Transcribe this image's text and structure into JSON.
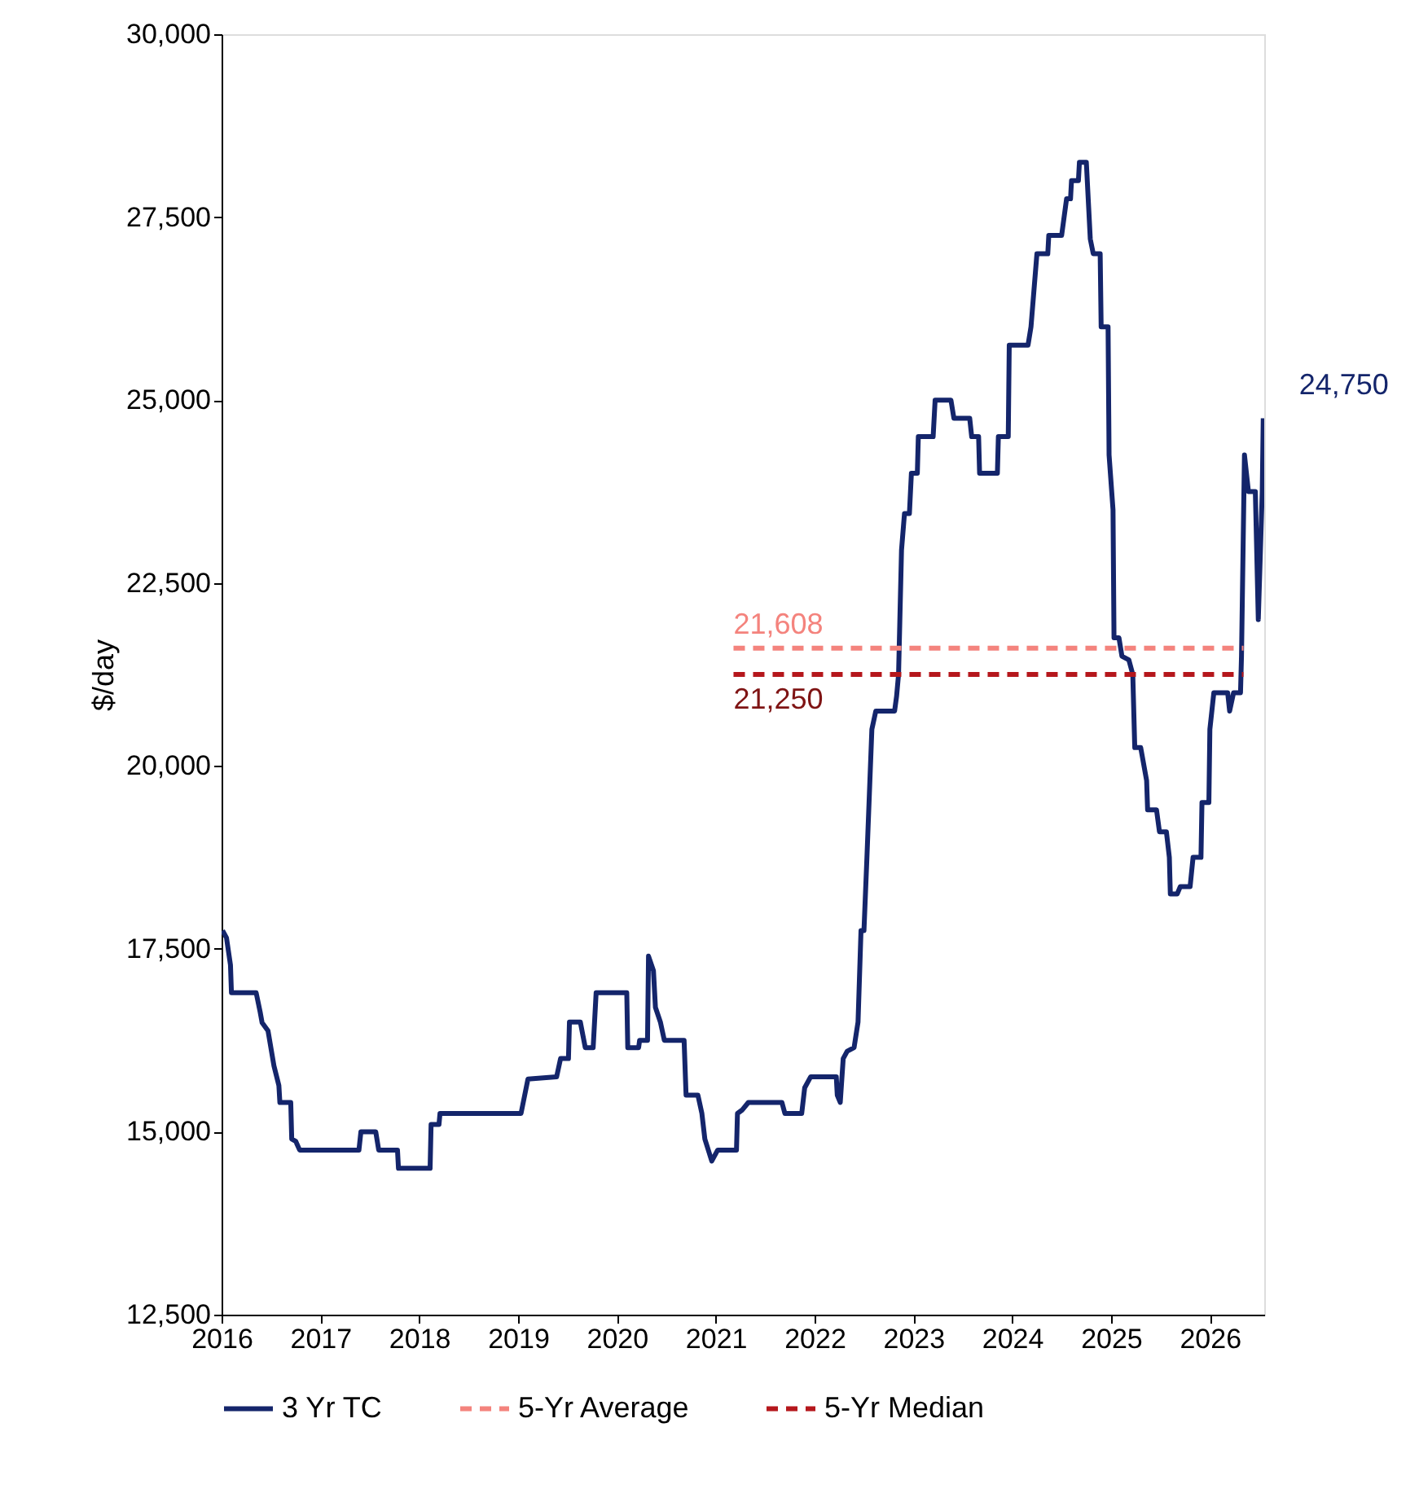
{
  "chart_data": {
    "type": "line",
    "ylabel": "$/day",
    "xlim": [
      2016,
      2026.55
    ],
    "xticks": [
      2016,
      2017,
      2018,
      2019,
      2020,
      2021,
      2022,
      2023,
      2024,
      2025,
      2026
    ],
    "ylim": [
      12500,
      30000
    ],
    "yticks": [
      {
        "value": 12500,
        "label": "12,500"
      },
      {
        "value": 15000,
        "label": "15,000"
      },
      {
        "value": 17500,
        "label": "17,500"
      },
      {
        "value": 20000,
        "label": "20,000"
      },
      {
        "value": 22500,
        "label": "22,500"
      },
      {
        "value": 25000,
        "label": "25,000"
      },
      {
        "value": 27500,
        "label": "27,500"
      },
      {
        "value": 30000,
        "label": "30,000"
      }
    ],
    "grid": false,
    "legend": "bottom",
    "marker": "none",
    "series": [
      {
        "name": "3 Yr TC",
        "color": "#14256b",
        "line_style": "solid",
        "x": [
          2016.01,
          2016.05,
          2016.09,
          2016.1,
          2016.35,
          2016.39,
          2016.41,
          2016.47,
          2016.53,
          2016.58,
          2016.59,
          2016.7,
          2016.71,
          2016.75,
          2016.79,
          2017.39,
          2017.41,
          2017.56,
          2017.59,
          2017.78,
          2017.79,
          2018.11,
          2018.12,
          2018.2,
          2018.21,
          2019.03,
          2019.1,
          2019.39,
          2019.43,
          2019.51,
          2019.52,
          2019.63,
          2019.68,
          2019.76,
          2019.79,
          2020.1,
          2020.11,
          2020.22,
          2020.23,
          2020.31,
          2020.32,
          2020.37,
          2020.39,
          2020.44,
          2020.48,
          2020.68,
          2020.7,
          2020.82,
          2020.86,
          2020.89,
          2020.96,
          2021.02,
          2021.21,
          2021.22,
          2021.27,
          2021.33,
          2021.42,
          2021.67,
          2021.7,
          2021.87,
          2021.9,
          2021.96,
          2022.22,
          2022.23,
          2022.26,
          2022.29,
          2022.33,
          2022.4,
          2022.44,
          2022.47,
          2022.5,
          2022.53,
          2022.56,
          2022.58,
          2022.62,
          2022.81,
          2022.83,
          2022.85,
          2022.88,
          2022.91,
          2022.96,
          2022.98,
          2023.04,
          2023.05,
          2023.2,
          2023.22,
          2023.38,
          2023.41,
          2023.57,
          2023.59,
          2023.66,
          2023.67,
          2023.85,
          2023.86,
          2023.96,
          2023.97,
          2024.16,
          2024.19,
          2024.25,
          2024.36,
          2024.37,
          2024.5,
          2024.55,
          2024.59,
          2024.6,
          2024.67,
          2024.68,
          2024.75,
          2024.79,
          2024.82,
          2024.89,
          2024.9,
          2024.97,
          2024.98,
          2025.02,
          2025.03,
          2025.08,
          2025.11,
          2025.18,
          2025.22,
          2025.24,
          2025.3,
          2025.36,
          2025.37,
          2025.46,
          2025.49,
          2025.56,
          2025.59,
          2025.6,
          2025.67,
          2025.7,
          2025.8,
          2025.83,
          2025.91,
          2025.92,
          2025.99,
          2026.0,
          2026.04,
          2026.18,
          2026.2,
          2026.24,
          2026.31,
          2026.32,
          2026.35,
          2026.39,
          2026.46,
          2026.49,
          2026.53,
          2026.54
        ],
        "values": [
          17750,
          17650,
          17280,
          16900,
          16900,
          16640,
          16490,
          16380,
          15900,
          15630,
          15400,
          15400,
          14900,
          14870,
          14750,
          14750,
          15000,
          15000,
          14750,
          14750,
          14500,
          14500,
          15100,
          15100,
          15250,
          15250,
          15720,
          15750,
          16000,
          16000,
          16500,
          16500,
          16150,
          16150,
          16900,
          16900,
          16150,
          16150,
          16250,
          16250,
          17400,
          17200,
          16700,
          16500,
          16250,
          16250,
          15500,
          15500,
          15250,
          14900,
          14600,
          14750,
          14750,
          15250,
          15300,
          15400,
          15400,
          15400,
          15250,
          15250,
          15600,
          15750,
          15750,
          15500,
          15400,
          16000,
          16100,
          16150,
          16500,
          17750,
          17750,
          18750,
          19800,
          20500,
          20750,
          20750,
          20950,
          21250,
          22950,
          23450,
          23450,
          24000,
          24000,
          24500,
          24500,
          25000,
          25000,
          24750,
          24750,
          24500,
          24500,
          24000,
          24000,
          24500,
          24500,
          25750,
          25750,
          26000,
          27000,
          27000,
          27250,
          27250,
          27750,
          27750,
          28000,
          28000,
          28250,
          28250,
          27200,
          27000,
          27000,
          26000,
          26000,
          24250,
          23500,
          21750,
          21750,
          21500,
          21450,
          21250,
          20250,
          20250,
          19800,
          19400,
          19400,
          19100,
          19100,
          18750,
          18250,
          18250,
          18350,
          18350,
          18750,
          18750,
          19500,
          19500,
          20500,
          21000,
          21000,
          20750,
          21000,
          21000,
          21500,
          24250,
          23750,
          23750,
          22000,
          23750,
          24750
        ],
        "value_labels": [
          null,
          null,
          null,
          null,
          null,
          null,
          null,
          null,
          null,
          null,
          null,
          null,
          null,
          null,
          null,
          null,
          null,
          null,
          null,
          null,
          null,
          null,
          null,
          null,
          null,
          null,
          null,
          null,
          null,
          null,
          null,
          null,
          null,
          null,
          null,
          null,
          null,
          null,
          null,
          null,
          null,
          null,
          null,
          null,
          null,
          null,
          null,
          null,
          null,
          null,
          null,
          null,
          null,
          null,
          null,
          null,
          null,
          null,
          null,
          null,
          null,
          null,
          null,
          null,
          null,
          null,
          null,
          null,
          null,
          null,
          null,
          null,
          null,
          null,
          null,
          null,
          null,
          null,
          null,
          null,
          null,
          null,
          null,
          null,
          null,
          null,
          null,
          null,
          null,
          null,
          null,
          null,
          null,
          null,
          null,
          null,
          null,
          null,
          null,
          null,
          null,
          null,
          null,
          null,
          null,
          null,
          null,
          null,
          null,
          null,
          null,
          null,
          null,
          null,
          null,
          null,
          null,
          null,
          null,
          null,
          null,
          null,
          null,
          null,
          null,
          null,
          null,
          null,
          null,
          null,
          null,
          null,
          null,
          null,
          null,
          null,
          null,
          null,
          null,
          null,
          null,
          null,
          null,
          null,
          null,
          null,
          null,
          null,
          "24,750"
        ]
      },
      {
        "name": "5-Yr Average",
        "color": "#f4837d",
        "line_style": "dashed",
        "x": [
          2021.18,
          2026.34
        ],
        "values": [
          21608,
          21608
        ],
        "value_labels": [
          "21,608",
          null
        ]
      },
      {
        "name": "5-Yr Median",
        "color": "#b5171c",
        "line_style": "dashed",
        "x": [
          2021.18,
          2026.34
        ],
        "values": [
          21250,
          21250
        ],
        "value_labels": [
          "21,250",
          null
        ]
      }
    ]
  }
}
